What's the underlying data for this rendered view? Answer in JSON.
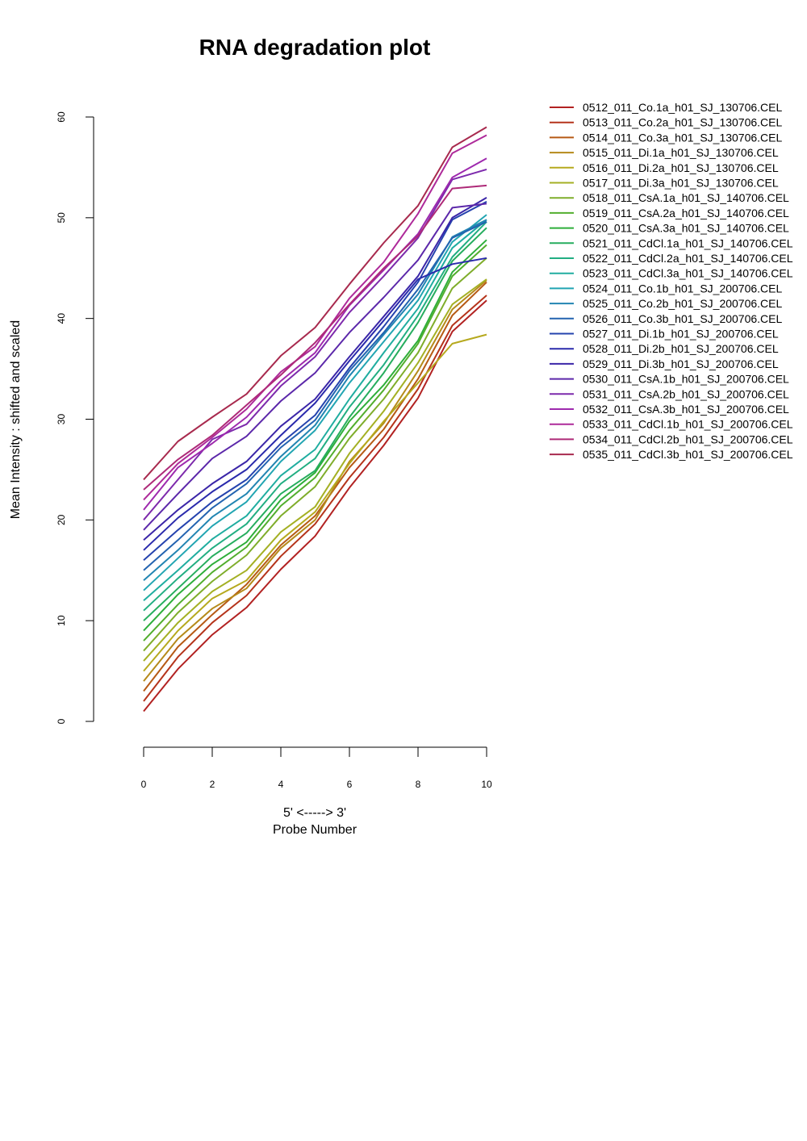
{
  "chart_data": {
    "type": "line",
    "title": "RNA degradation plot",
    "xlabel_line1": "5' <-----> 3'",
    "xlabel_line2": "Probe Number",
    "ylabel": "Mean Intensity : shifted and scaled",
    "xlim": [
      0,
      10
    ],
    "ylim": [
      0,
      60
    ],
    "x_ticks": [
      "0",
      "2",
      "4",
      "6",
      "8",
      "10"
    ],
    "y_ticks": [
      "0",
      "10",
      "20",
      "30",
      "40",
      "50",
      "60"
    ],
    "grid": false,
    "legend_position": "top-right",
    "x": [
      0,
      1,
      2,
      3,
      4,
      5,
      6,
      7,
      8,
      9,
      10
    ],
    "series": [
      {
        "name": "0512_011_Co.1a_h01_SJ_130706.CEL",
        "color": "#B22222",
        "values": [
          1.0,
          5.2,
          8.6,
          11.3,
          15.1,
          18.4,
          23.2,
          27.4,
          32.1,
          38.7,
          41.8
        ]
      },
      {
        "name": "0513_011_Co.2a_h01_SJ_130706.CEL",
        "color": "#B5341B",
        "values": [
          2.0,
          6.4,
          9.8,
          12.5,
          16.4,
          19.6,
          24.2,
          28.2,
          33.0,
          39.3,
          42.3
        ]
      },
      {
        "name": "0514_011_Co.3a_h01_SJ_130706.CEL",
        "color": "#B65A15",
        "values": [
          3.0,
          7.4,
          10.6,
          13.6,
          17.5,
          20.4,
          25.2,
          29.0,
          34.0,
          40.3,
          43.6
        ]
      },
      {
        "name": "0515_011_Di.1a_h01_SJ_130706.CEL",
        "color": "#B58A1A",
        "values": [
          4.0,
          8.2,
          11.2,
          13.2,
          17.2,
          20.0,
          25.8,
          29.6,
          34.8,
          40.9,
          43.8
        ]
      },
      {
        "name": "0516_011_Di.2a_h01_SJ_130706.CEL",
        "color": "#B6A91E",
        "values": [
          5.0,
          9.0,
          12.2,
          14.0,
          18.0,
          20.8,
          25.6,
          29.8,
          33.6,
          37.5,
          38.4
        ]
      },
      {
        "name": "0517_011_Di.3a_h01_SJ_130706.CEL",
        "color": "#A4B024",
        "values": [
          6.0,
          9.8,
          12.9,
          15.0,
          18.8,
          21.3,
          26.6,
          30.8,
          35.6,
          41.4,
          43.9
        ]
      },
      {
        "name": "0518_011_CsA.1a_h01_SJ_140706.CEL",
        "color": "#7FAD2B",
        "values": [
          7.0,
          10.8,
          13.9,
          16.5,
          20.4,
          23.3,
          28.1,
          32.0,
          36.6,
          43.0,
          46.0
        ]
      },
      {
        "name": "0519_011_CsA.2a_h01_SJ_140706.CEL",
        "color": "#52AE2E",
        "values": [
          8.0,
          11.6,
          14.8,
          17.3,
          21.4,
          24.2,
          28.9,
          32.9,
          37.5,
          44.2,
          47.3
        ]
      },
      {
        "name": "0520_011_CsA.3a_h01_SJ_140706.CEL",
        "color": "#2EAE3A",
        "values": [
          9.0,
          12.6,
          15.6,
          17.8,
          22.0,
          24.7,
          29.8,
          33.4,
          37.8,
          44.6,
          47.8
        ]
      },
      {
        "name": "0521_011_CdCl.1a_h01_SJ_140706.CEL",
        "color": "#26AD5E",
        "values": [
          10.0,
          13.2,
          16.4,
          18.7,
          22.6,
          24.9,
          30.2,
          34.6,
          39.6,
          45.7,
          49.0
        ]
      },
      {
        "name": "0522_011_CdCl.2a_h01_SJ_140706.CEL",
        "color": "#22AE82",
        "values": [
          11.0,
          14.2,
          17.2,
          19.6,
          23.6,
          26.1,
          31.2,
          35.4,
          40.3,
          46.1,
          49.6
        ]
      },
      {
        "name": "0523_011_CdCl.3a_h01_SJ_140706.CEL",
        "color": "#20ADA0",
        "values": [
          12.0,
          15.0,
          18.1,
          20.4,
          24.4,
          27.0,
          32.0,
          36.6,
          41.0,
          47.0,
          49.8
        ]
      },
      {
        "name": "0524_011_Co.1b_h01_SJ_200706.CEL",
        "color": "#22A5B2",
        "values": [
          13.0,
          16.2,
          19.4,
          21.8,
          25.8,
          28.9,
          33.6,
          37.7,
          41.8,
          47.6,
          50.3
        ]
      },
      {
        "name": "0525_011_Co.2b_h01_SJ_200706.CEL",
        "color": "#2285B2",
        "values": [
          14.0,
          17.0,
          20.3,
          22.6,
          26.3,
          29.4,
          34.3,
          38.4,
          42.4,
          48.1,
          49.8
        ]
      },
      {
        "name": "0526_011_Co.3b_h01_SJ_200706.CEL",
        "color": "#2363B0",
        "values": [
          15.0,
          18.0,
          21.2,
          23.6,
          27.2,
          29.9,
          34.8,
          38.6,
          42.9,
          48.0,
          49.6
        ]
      },
      {
        "name": "0527_011_Di.1b_h01_SJ_200706.CEL",
        "color": "#2543AE",
        "values": [
          16.0,
          19.0,
          21.8,
          24.0,
          27.6,
          30.4,
          35.1,
          39.2,
          43.6,
          49.8,
          51.6
        ]
      },
      {
        "name": "0528_011_Di.2b_h01_SJ_200706.CEL",
        "color": "#2A2AAC",
        "values": [
          17.0,
          20.2,
          22.8,
          25.0,
          28.4,
          31.6,
          35.8,
          39.8,
          43.9,
          45.4,
          46.0
        ]
      },
      {
        "name": "0529_011_Di.3b_h01_SJ_200706.CEL",
        "color": "#3B26A8",
        "values": [
          18.0,
          21.0,
          23.6,
          25.8,
          29.3,
          32.0,
          36.2,
          40.2,
          44.2,
          50.0,
          52.0
        ]
      },
      {
        "name": "0530_011_CsA.1b_h01_SJ_200706.CEL",
        "color": "#5C28AA",
        "values": [
          19.0,
          22.6,
          26.1,
          28.3,
          31.8,
          34.6,
          38.6,
          42.1,
          45.8,
          51.0,
          51.4
        ]
      },
      {
        "name": "0531_011_CsA.2b_h01_SJ_200706.CEL",
        "color": "#7D2AAC",
        "values": [
          20.0,
          24.0,
          28.0,
          29.5,
          33.3,
          36.2,
          40.6,
          44.2,
          48.0,
          53.8,
          54.8
        ]
      },
      {
        "name": "0532_011_CsA.3b_h01_SJ_200706.CEL",
        "color": "#9E2AAE",
        "values": [
          21.0,
          25.2,
          27.6,
          30.2,
          33.8,
          36.6,
          41.3,
          44.8,
          48.4,
          54.0,
          55.9
        ]
      },
      {
        "name": "0533_011_CdCl.1b_h01_SJ_200706.CEL",
        "color": "#AE2A9A",
        "values": [
          22.0,
          25.6,
          28.2,
          31.0,
          34.7,
          37.2,
          42.0,
          45.6,
          50.4,
          56.4,
          58.2
        ]
      },
      {
        "name": "0534_011_CdCl.2b_h01_SJ_200706.CEL",
        "color": "#AE2A78",
        "values": [
          23.0,
          26.0,
          28.4,
          31.4,
          34.4,
          37.6,
          41.4,
          45.0,
          48.2,
          52.9,
          53.2
        ]
      },
      {
        "name": "0535_011_CdCl.3b_h01_SJ_200706.CEL",
        "color": "#A82A4E",
        "values": [
          24.0,
          27.8,
          30.2,
          32.5,
          36.3,
          39.1,
          43.4,
          47.5,
          51.2,
          57.0,
          59.0
        ]
      }
    ]
  }
}
